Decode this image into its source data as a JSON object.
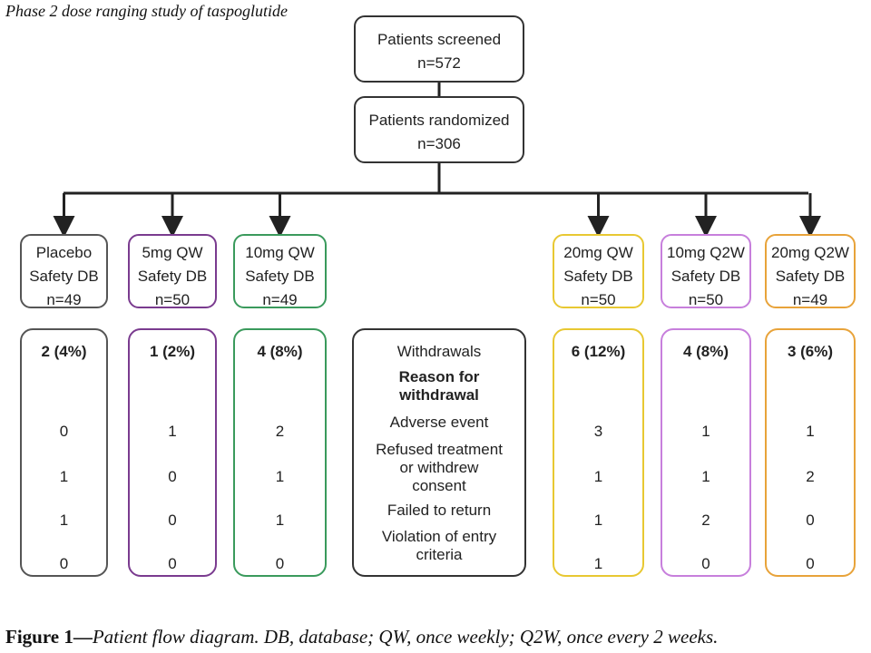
{
  "title": "Phase 2 dose ranging study of taspoglutide",
  "screened": {
    "label": "Patients screened",
    "n": "n=572"
  },
  "randomized": {
    "label": "Patients randomized",
    "n": "n=306"
  },
  "groups": [
    {
      "key": "placebo",
      "line1": "Placebo",
      "line2": "Safety DB",
      "n": "n=49",
      "color": "#555555"
    },
    {
      "key": "5mg-qw",
      "line1": "5mg QW",
      "line2": "Safety DB",
      "n": "n=50",
      "color": "#7a3b8f"
    },
    {
      "key": "10mg-qw",
      "line1": "10mg QW",
      "line2": "Safety DB",
      "n": "n=49",
      "color": "#3a9a5c"
    },
    {
      "key": "20mg-qw",
      "line1": "20mg QW",
      "line2": "Safety DB",
      "n": "n=50",
      "color": "#e8c832"
    },
    {
      "key": "10mg-q2w",
      "line1": "10mg Q2W",
      "line2": "Safety DB",
      "n": "n=50",
      "color": "#c77fdc"
    },
    {
      "key": "20mg-q2w",
      "line1": "20mg Q2W",
      "line2": "Safety DB",
      "n": "n=49",
      "color": "#e8a33a"
    }
  ],
  "reasons": {
    "withdrawals": "Withdrawals",
    "header": [
      "Reason for",
      "withdrawal"
    ],
    "items": [
      [
        "Adverse event"
      ],
      [
        "Refused treatment",
        "or withdrew",
        "consent"
      ],
      [
        "Failed to return"
      ],
      [
        "Violation of entry",
        "criteria"
      ]
    ]
  },
  "withdrawals": [
    {
      "total": "2 (4%)",
      "values": [
        "0",
        "1",
        "1",
        "0"
      ]
    },
    {
      "total": "1 (2%)",
      "values": [
        "1",
        "0",
        "0",
        "0"
      ]
    },
    {
      "total": "4 (8%)",
      "values": [
        "2",
        "1",
        "1",
        "0"
      ]
    },
    {
      "total": "6 (12%)",
      "values": [
        "3",
        "1",
        "1",
        "1"
      ]
    },
    {
      "total": "4 (8%)",
      "values": [
        "1",
        "1",
        "2",
        "0"
      ]
    },
    {
      "total": "3 (6%)",
      "values": [
        "1",
        "2",
        "0",
        "0"
      ]
    }
  ],
  "caption": {
    "lead": "Figure 1—",
    "rest": "Patient flow diagram. DB, database; QW, once weekly; Q2W, once every 2 weeks."
  }
}
